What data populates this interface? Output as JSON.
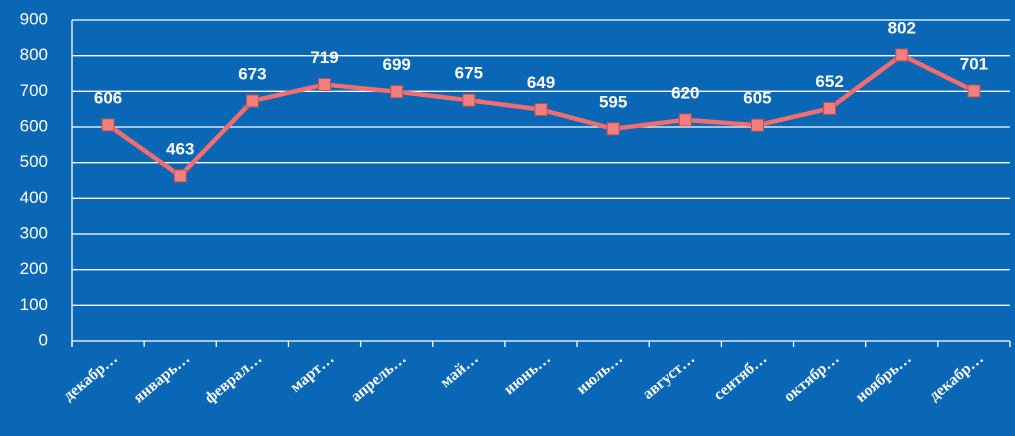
{
  "chart_data": {
    "type": "line",
    "categories": [
      "декабр…",
      "январь…",
      "феврал…",
      "март…",
      "апрель…",
      "май…",
      "июнь…",
      "июль…",
      "август…",
      "сентяб…",
      "октябр…",
      "ноябрь…",
      "декабр…"
    ],
    "values": [
      606,
      463,
      673,
      719,
      699,
      675,
      649,
      595,
      620,
      605,
      652,
      802,
      701
    ],
    "color": "#f26d6d",
    "marker_color": "#f08080",
    "ylim": [
      0,
      900
    ],
    "yticks": [
      0,
      100,
      200,
      300,
      400,
      500,
      600,
      700,
      800,
      900
    ],
    "grid": true
  }
}
